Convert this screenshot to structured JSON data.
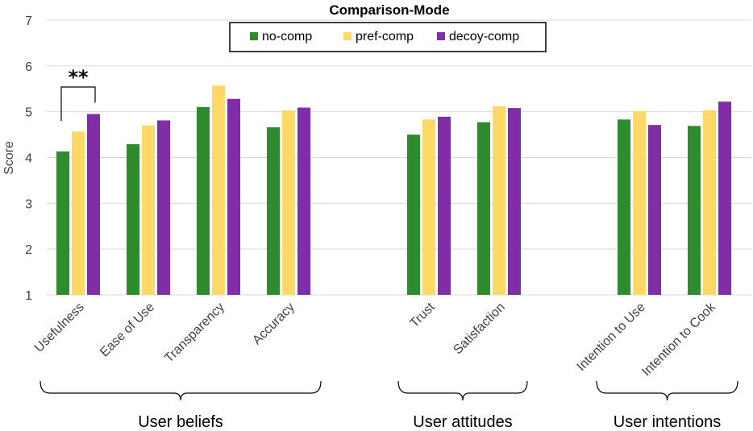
{
  "chart_data": {
    "type": "bar",
    "title": "Comparison-Mode",
    "ylabel": "Score",
    "xlabel": "",
    "ylim": [
      1,
      7
    ],
    "yticks": [
      1,
      2,
      3,
      4,
      5,
      6,
      7
    ],
    "grid": true,
    "legend_position": "top-center",
    "categories": [
      "Usefulness",
      "Ease of Use",
      "Transparency",
      "Accuracy",
      "Trust",
      "Satisfaction",
      "Intention to Use",
      "Intention to Cook"
    ],
    "series": [
      {
        "name": "no-comp",
        "color": "#2e8b2e",
        "values": [
          4.13,
          4.29,
          5.1,
          4.66,
          4.5,
          4.77,
          4.83,
          4.69
        ]
      },
      {
        "name": "pref-comp",
        "color": "#ffd966",
        "values": [
          4.57,
          4.7,
          5.57,
          5.03,
          4.83,
          5.12,
          5.01,
          5.03
        ]
      },
      {
        "name": "decoy-comp",
        "color": "#7f2ea8",
        "values": [
          4.95,
          4.81,
          5.28,
          5.09,
          4.89,
          5.08,
          4.71,
          5.22
        ]
      }
    ],
    "groups": [
      {
        "label": "User beliefs",
        "categories": [
          "Usefulness",
          "Ease of Use",
          "Transparency",
          "Accuracy"
        ]
      },
      {
        "label": "User attitudes",
        "categories": [
          "Trust",
          "Satisfaction"
        ]
      },
      {
        "label": "User intentions",
        "categories": [
          "Intention to Use",
          "Intention to Cook"
        ]
      }
    ],
    "annotations": [
      {
        "text": "**",
        "category": "Usefulness",
        "between": [
          "no-comp",
          "decoy-comp"
        ]
      }
    ]
  }
}
